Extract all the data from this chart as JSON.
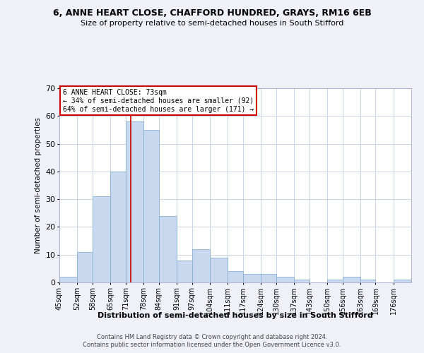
{
  "title1": "6, ANNE HEART CLOSE, CHAFFORD HUNDRED, GRAYS, RM16 6EB",
  "title2": "Size of property relative to semi-detached houses in South Stifford",
  "xlabel": "Distribution of semi-detached houses by size in South Stifford",
  "ylabel": "Number of semi-detached properties",
  "bin_labels": [
    "45sqm",
    "52sqm",
    "58sqm",
    "65sqm",
    "71sqm",
    "78sqm",
    "84sqm",
    "91sqm",
    "97sqm",
    "104sqm",
    "111sqm",
    "117sqm",
    "124sqm",
    "130sqm",
    "137sqm",
    "143sqm",
    "150sqm",
    "156sqm",
    "163sqm",
    "169sqm",
    "176sqm"
  ],
  "bin_edges": [
    45,
    52,
    58,
    65,
    71,
    78,
    84,
    91,
    97,
    104,
    111,
    117,
    124,
    130,
    137,
    143,
    150,
    156,
    163,
    169,
    176
  ],
  "counts": [
    2,
    11,
    31,
    40,
    58,
    55,
    24,
    8,
    12,
    9,
    4,
    3,
    3,
    2,
    1,
    0,
    1,
    2,
    1,
    0,
    1
  ],
  "bar_color": "#c8d8ee",
  "bar_edge_color": "#8ab0d4",
  "marker_value": 73,
  "marker_line_color": "#cc0000",
  "box_line_color": "#cc0000",
  "annotation_title": "6 ANNE HEART CLOSE: 73sqm",
  "annotation_line1": "← 34% of semi-detached houses are smaller (92)",
  "annotation_line2": "64% of semi-detached houses are larger (171) →",
  "ylim": [
    0,
    70
  ],
  "yticks": [
    0,
    10,
    20,
    30,
    40,
    50,
    60,
    70
  ],
  "footer1": "Contains HM Land Registry data © Crown copyright and database right 2024.",
  "footer2": "Contains public sector information licensed under the Open Government Licence v3.0.",
  "bg_color": "#eef2f8",
  "plot_bg_color": "#ffffff",
  "grid_color": "#c8d4e8"
}
